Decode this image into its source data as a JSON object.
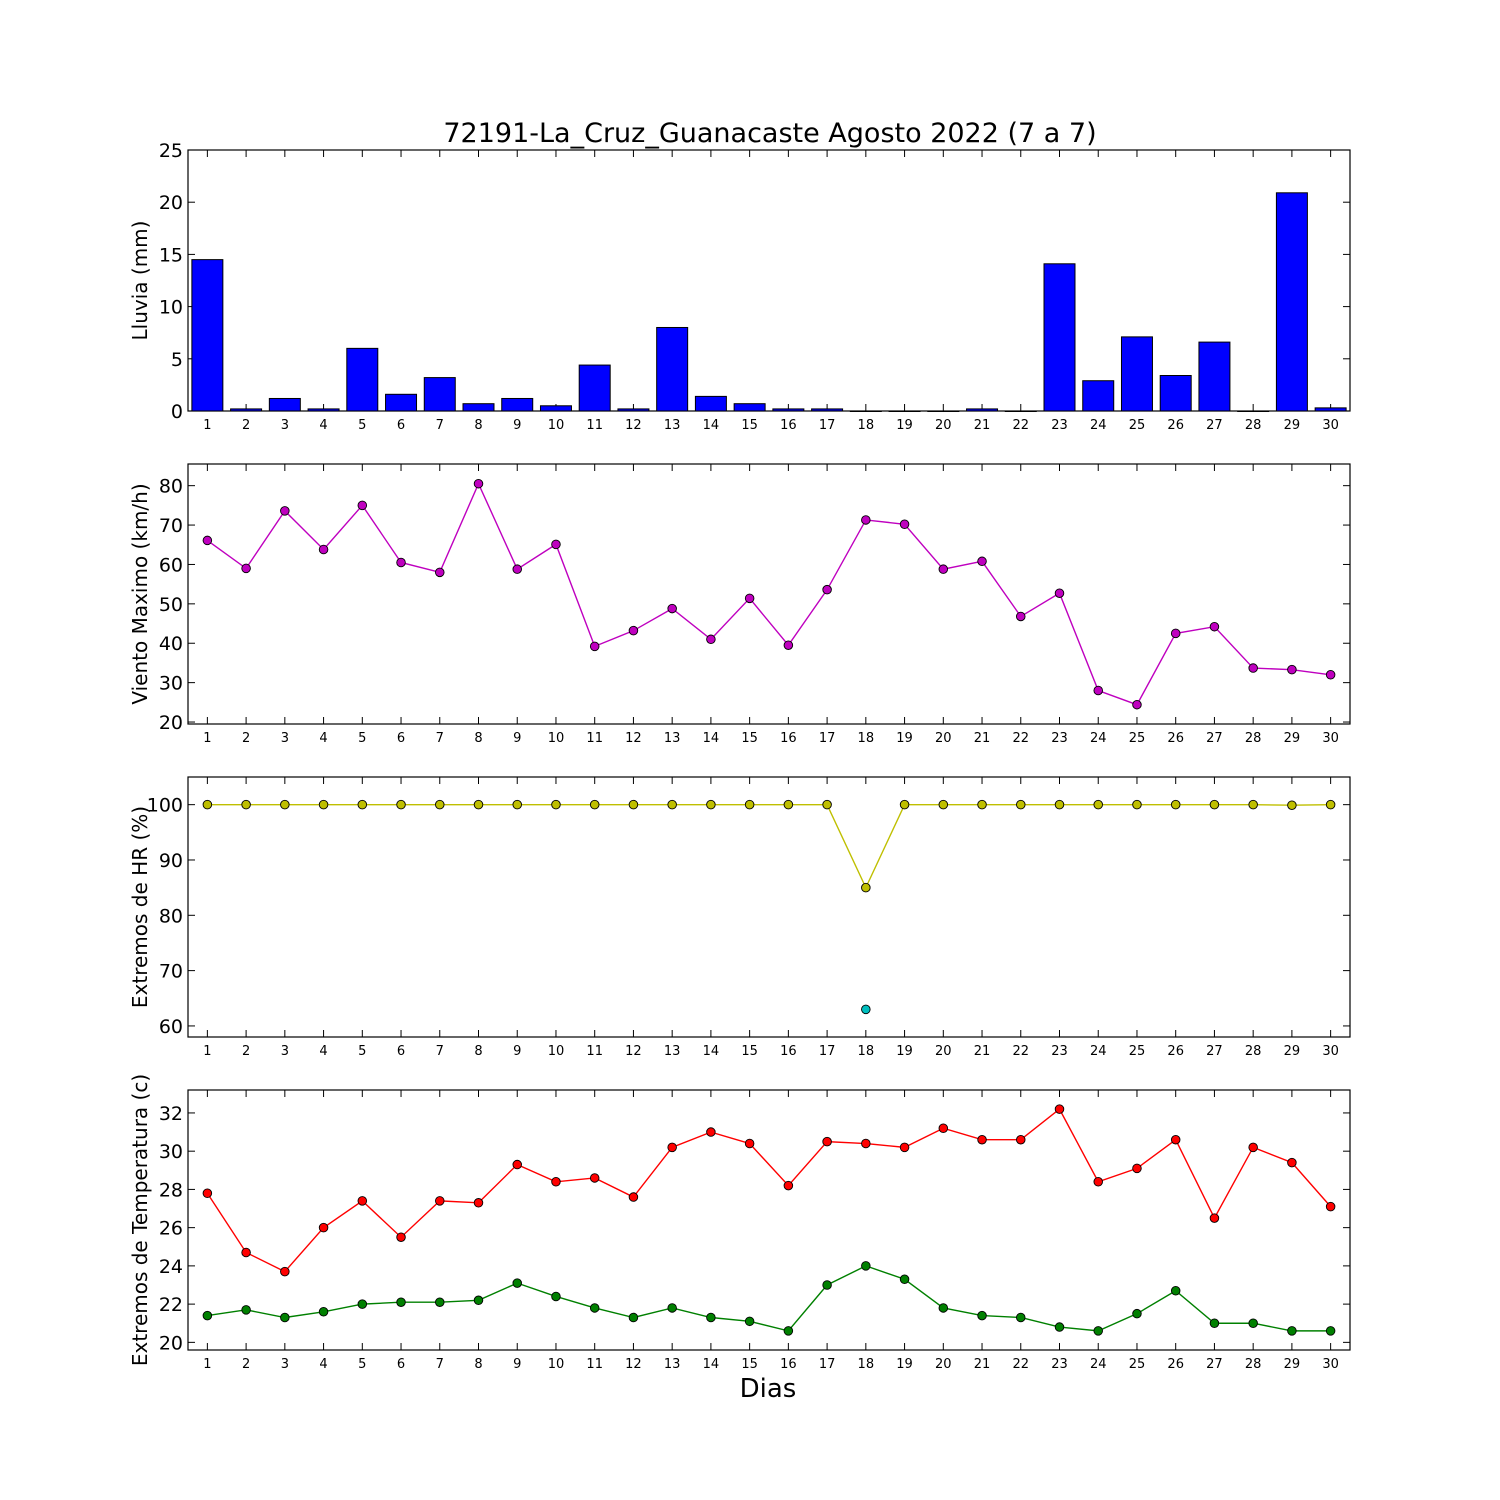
{
  "chart_data": {
    "title": "72191-La_Cruz_Guanacaste Agosto 2022  (7 a 7)",
    "xlabel": "Dias",
    "days": [
      1,
      2,
      3,
      4,
      5,
      6,
      7,
      8,
      9,
      10,
      11,
      12,
      13,
      14,
      15,
      16,
      17,
      18,
      19,
      20,
      21,
      22,
      23,
      24,
      25,
      26,
      27,
      28,
      29,
      30
    ],
    "panels": [
      {
        "type": "bar",
        "ylabel": "Lluvia (mm)",
        "ylim": [
          0,
          25
        ],
        "yticks": [
          0,
          5,
          10,
          15,
          20,
          25
        ],
        "series": [
          {
            "color": "#0000ff",
            "values": [
              14.5,
              0.2,
              1.2,
              0.2,
              6.0,
              1.6,
              3.2,
              0.7,
              1.2,
              0.5,
              4.4,
              0.2,
              8.0,
              1.4,
              0.7,
              0.2,
              0.2,
              0.0,
              0.0,
              0.0,
              0.2,
              0.0,
              14.1,
              2.9,
              7.1,
              3.4,
              6.6,
              0.0,
              20.9,
              0.3
            ]
          }
        ]
      },
      {
        "type": "line",
        "ylabel": "Viento Maximo (km/h)",
        "ylim": [
          19.5,
          85.5
        ],
        "yticks": [
          20,
          30,
          40,
          50,
          60,
          70,
          80
        ],
        "series": [
          {
            "color": "#bf00bf",
            "values": [
              66.1,
              59.0,
              73.6,
              63.8,
              75.0,
              60.5,
              58.0,
              80.5,
              58.8,
              65.1,
              39.2,
              43.2,
              48.8,
              41.0,
              51.4,
              39.5,
              53.6,
              71.3,
              70.2,
              58.8,
              60.8,
              46.8,
              52.7,
              28.0,
              24.4,
              42.5,
              44.2,
              33.7,
              33.3,
              32.0
            ]
          }
        ]
      },
      {
        "type": "line",
        "ylabel": "Extremos de HR (%)",
        "ylim": [
          58,
          105
        ],
        "yticks": [
          60,
          70,
          80,
          90,
          100
        ],
        "series": [
          {
            "color": "#bfbf00",
            "values": [
              100,
              100,
              100,
              100,
              100,
              100,
              100,
              100,
              100,
              100,
              100,
              100,
              100,
              100,
              100,
              100,
              100,
              85,
              100,
              100,
              100,
              100,
              100,
              100,
              100,
              100,
              100,
              100,
              99.9,
              100
            ]
          },
          {
            "color": "#00bfbf",
            "marker_only": true,
            "values": [
              null,
              null,
              null,
              null,
              null,
              null,
              null,
              null,
              null,
              null,
              null,
              null,
              null,
              null,
              null,
              null,
              null,
              63,
              null,
              null,
              null,
              null,
              null,
              null,
              null,
              null,
              null,
              null,
              null,
              null
            ]
          }
        ]
      },
      {
        "type": "line",
        "ylabel": "Extremos de Temperatura (c)",
        "ylim": [
          19.6,
          33.2
        ],
        "yticks": [
          20,
          22,
          24,
          26,
          28,
          30,
          32
        ],
        "series": [
          {
            "color": "#ff0000",
            "values": [
              27.8,
              24.7,
              23.7,
              26.0,
              27.4,
              25.5,
              27.4,
              27.3,
              29.3,
              28.4,
              28.6,
              27.6,
              30.2,
              31.0,
              30.4,
              28.2,
              30.5,
              30.4,
              30.2,
              31.2,
              30.6,
              30.6,
              32.2,
              28.4,
              29.1,
              30.6,
              26.5,
              30.2,
              29.4,
              27.1
            ]
          },
          {
            "color": "#008000",
            "values": [
              21.4,
              21.7,
              21.3,
              21.6,
              22.0,
              22.1,
              22.1,
              22.2,
              23.1,
              22.4,
              21.8,
              21.3,
              21.8,
              21.3,
              21.1,
              20.6,
              23.0,
              24.0,
              23.3,
              21.8,
              21.4,
              21.3,
              20.8,
              20.6,
              21.5,
              22.7,
              21.0,
              21.0,
              20.6,
              20.6
            ]
          }
        ]
      }
    ]
  }
}
